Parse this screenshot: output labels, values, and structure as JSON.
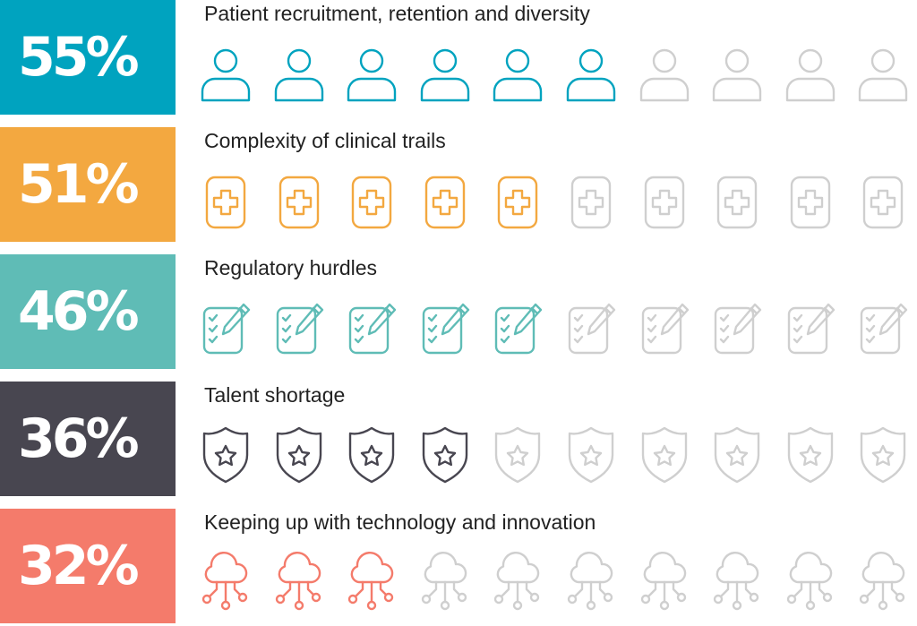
{
  "chart_data": {
    "type": "pictograph",
    "icons_per_row": 10,
    "inactive_color": "#cfcfcf",
    "rows": [
      {
        "percent": "55%",
        "value": 55,
        "label": "Patient recruitment, retention and diversity",
        "icon": "person-icon",
        "color": "#00a3bf",
        "filled_icons": 6
      },
      {
        "percent": "51%",
        "value": 51,
        "label": "Complexity of clinical trails",
        "icon": "medical-cross-icon",
        "color": "#f3a840",
        "filled_icons": 5
      },
      {
        "percent": "46%",
        "value": 46,
        "label": "Regulatory hurdles",
        "icon": "checklist-pencil-icon",
        "color": "#5fbcb6",
        "filled_icons": 5
      },
      {
        "percent": "36%",
        "value": 36,
        "label": "Talent shortage",
        "icon": "shield-star-icon",
        "color": "#484650",
        "filled_icons": 4
      },
      {
        "percent": "32%",
        "value": 32,
        "label": "Keeping up with technology and innovation",
        "icon": "cloud-network-icon",
        "color": "#f47b6b",
        "filled_icons": 3
      }
    ]
  }
}
